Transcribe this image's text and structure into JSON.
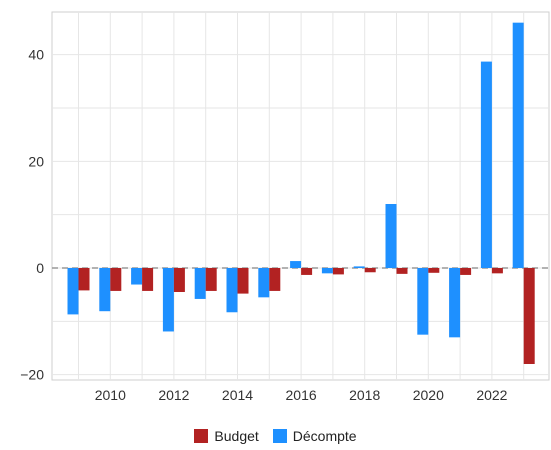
{
  "chart_data": {
    "type": "bar",
    "x": [
      2009,
      2010,
      2011,
      2012,
      2013,
      2014,
      2015,
      2016,
      2017,
      2018,
      2019,
      2020,
      2021,
      2022,
      2023
    ],
    "xticks": [
      "2010",
      "2012",
      "2014",
      "2016",
      "2018",
      "2020",
      "2022"
    ],
    "yticks": [
      "−20",
      "0",
      "20",
      "40"
    ],
    "ylim": [
      -21,
      48
    ],
    "series": [
      {
        "name": "Budget",
        "color": "#b22222",
        "values": [
          -4.2,
          -4.3,
          -4.3,
          -4.5,
          -4.3,
          -4.8,
          -4.3,
          -1.3,
          -1.2,
          -0.8,
          -1.1,
          -0.9,
          -1.3,
          -1.0,
          -18.0
        ]
      },
      {
        "name": "Décompte",
        "color": "#1e90ff",
        "values": [
          -8.7,
          -8.1,
          -3.1,
          -11.9,
          -5.8,
          -8.3,
          -5.5,
          1.3,
          -1.0,
          0.3,
          12.0,
          -12.5,
          -13.0,
          38.7,
          46.0
        ]
      }
    ],
    "grid": true,
    "legend_position": "bottom"
  }
}
